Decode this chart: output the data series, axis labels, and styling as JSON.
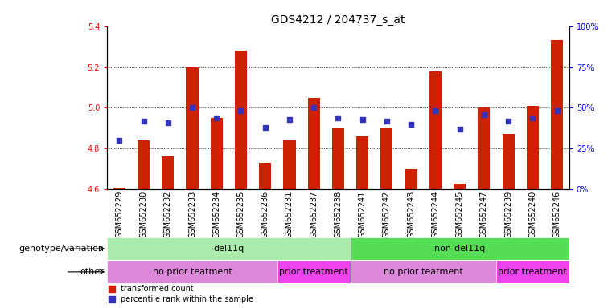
{
  "title": "GDS4212 / 204737_s_at",
  "samples": [
    "GSM652229",
    "GSM652230",
    "GSM652232",
    "GSM652233",
    "GSM652234",
    "GSM652235",
    "GSM652236",
    "GSM652231",
    "GSM652237",
    "GSM652238",
    "GSM652241",
    "GSM652242",
    "GSM652243",
    "GSM652244",
    "GSM652245",
    "GSM652247",
    "GSM652239",
    "GSM652240",
    "GSM652246"
  ],
  "red_values": [
    4.61,
    4.84,
    4.76,
    5.2,
    4.95,
    5.28,
    4.73,
    4.84,
    5.05,
    4.9,
    4.86,
    4.9,
    4.7,
    5.18,
    4.63,
    5.0,
    4.87,
    5.01,
    5.33
  ],
  "blue_values": [
    0.3,
    0.42,
    0.41,
    0.5,
    0.44,
    0.48,
    0.38,
    0.43,
    0.5,
    0.44,
    0.43,
    0.42,
    0.4,
    0.48,
    0.37,
    0.46,
    0.42,
    0.44,
    0.48
  ],
  "ylim_left": [
    4.6,
    5.4
  ],
  "ylim_right": [
    0,
    100
  ],
  "yticks_left": [
    4.6,
    4.8,
    5.0,
    5.2,
    5.4
  ],
  "yticks_right": [
    0,
    25,
    50,
    75,
    100
  ],
  "ytick_labels_right": [
    "0%",
    "25%",
    "50%",
    "75%",
    "100%"
  ],
  "bar_color": "#cc2200",
  "dot_color": "#3333bb",
  "bar_bottom": 4.6,
  "genotype_groups": [
    {
      "label": "del11q",
      "start": 0,
      "end": 10,
      "color": "#aaeaaa"
    },
    {
      "label": "non-del11q",
      "start": 10,
      "end": 19,
      "color": "#55dd55"
    }
  ],
  "other_groups": [
    {
      "label": "no prior teatment",
      "start": 0,
      "end": 7,
      "color": "#dd88dd"
    },
    {
      "label": "prior treatment",
      "start": 7,
      "end": 10,
      "color": "#ee44ee"
    },
    {
      "label": "no prior teatment",
      "start": 10,
      "end": 16,
      "color": "#dd88dd"
    },
    {
      "label": "prior treatment",
      "start": 16,
      "end": 19,
      "color": "#ee44ee"
    }
  ],
  "legend_red": "transformed count",
  "legend_blue": "percentile rank within the sample",
  "background_color": "#ffffff",
  "title_fontsize": 10,
  "tick_fontsize": 7,
  "annotation_fontsize": 8,
  "row_label_fontsize": 8
}
